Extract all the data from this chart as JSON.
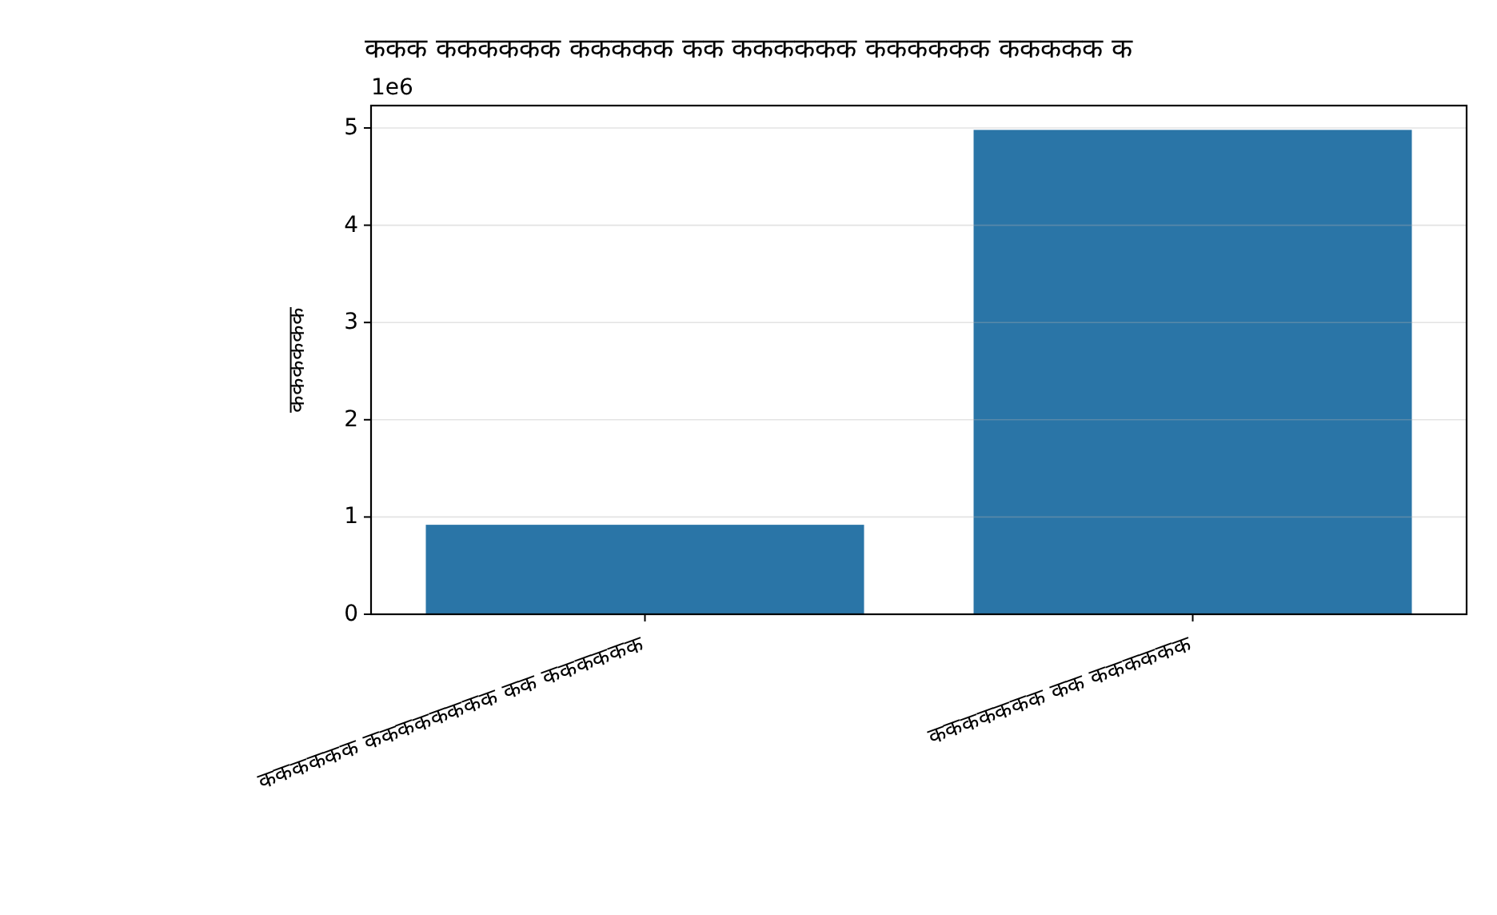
{
  "chart_data": {
    "type": "bar",
    "title": "ककक कककककक ककककक कक कककककक कककककक ककककक क",
    "ylabel": "कककककक",
    "categories": [
      "कककककक कककककककक कक कककककक",
      "ककककककक कक कककककक"
    ],
    "values": [
      0.92,
      4.98
    ],
    "color": "#2a75a7",
    "ylim": [
      0,
      5.23
    ],
    "yticks": [
      0,
      1,
      2,
      3,
      4,
      5
    ],
    "grid": "y",
    "annotations": [
      "1e6"
    ]
  }
}
